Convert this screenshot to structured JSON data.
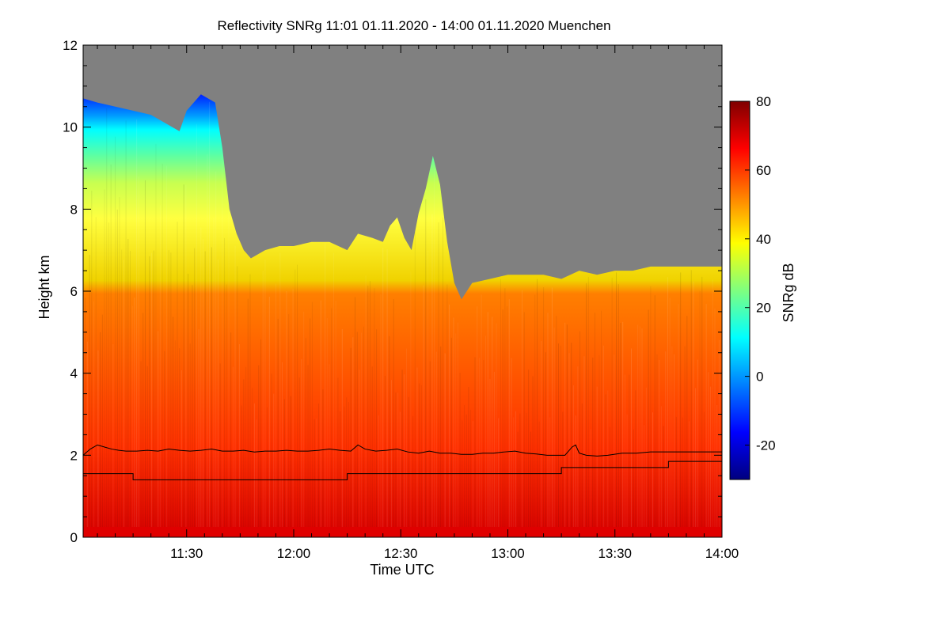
{
  "chart_data": {
    "type": "heatmap",
    "title": "Reflectivity SNRg   11:01 01.11.2020 - 14:00 01.11.2020 Muenchen",
    "xlabel": "Time UTC",
    "ylabel": "Height km",
    "colorbar_label": "SNRg dB",
    "xlim_minutes": [
      661,
      840
    ],
    "ylim_km": [
      0,
      12
    ],
    "x_ticks": [
      {
        "minute": 690,
        "label": "11:30"
      },
      {
        "minute": 720,
        "label": "12:00"
      },
      {
        "minute": 750,
        "label": "12:30"
      },
      {
        "minute": 780,
        "label": "13:00"
      },
      {
        "minute": 810,
        "label": "13:30"
      },
      {
        "minute": 840,
        "label": "14:00"
      }
    ],
    "y_ticks": [
      {
        "value": 0,
        "label": "0"
      },
      {
        "value": 2,
        "label": "2"
      },
      {
        "value": 4,
        "label": "4"
      },
      {
        "value": 6,
        "label": "6"
      },
      {
        "value": 8,
        "label": "8"
      },
      {
        "value": 10,
        "label": "10"
      },
      {
        "value": 12,
        "label": "12"
      }
    ],
    "colorbar_range": [
      -30,
      80
    ],
    "colorbar_ticks": [
      {
        "value": -20,
        "label": "-20"
      },
      {
        "value": 0,
        "label": "0"
      },
      {
        "value": 20,
        "label": "20"
      },
      {
        "value": 40,
        "label": "40"
      },
      {
        "value": 60,
        "label": "60"
      },
      {
        "value": 80,
        "label": "80"
      }
    ],
    "colormap": [
      "#00007f",
      "#0000ff",
      "#007fff",
      "#00ffff",
      "#7fff7f",
      "#ffff00",
      "#ff7f00",
      "#ff0000",
      "#7f0000"
    ],
    "no_signal_color": "#808080",
    "signal_top_km": [
      [
        661,
        10.7
      ],
      [
        665,
        10.6
      ],
      [
        670,
        10.5
      ],
      [
        675,
        10.4
      ],
      [
        680,
        10.3
      ],
      [
        684,
        10.1
      ],
      [
        688,
        9.9
      ],
      [
        690,
        10.4
      ],
      [
        694,
        10.8
      ],
      [
        698,
        10.6
      ],
      [
        700,
        9.5
      ],
      [
        702,
        8.0
      ],
      [
        704,
        7.4
      ],
      [
        706,
        7.0
      ],
      [
        708,
        6.8
      ],
      [
        712,
        7.0
      ],
      [
        716,
        7.1
      ],
      [
        720,
        7.1
      ],
      [
        725,
        7.2
      ],
      [
        730,
        7.2
      ],
      [
        735,
        7.0
      ],
      [
        738,
        7.4
      ],
      [
        742,
        7.3
      ],
      [
        745,
        7.2
      ],
      [
        747,
        7.6
      ],
      [
        749,
        7.8
      ],
      [
        751,
        7.3
      ],
      [
        753,
        7.0
      ],
      [
        755,
        7.9
      ],
      [
        757,
        8.5
      ],
      [
        759,
        9.3
      ],
      [
        761,
        8.6
      ],
      [
        763,
        7.2
      ],
      [
        765,
        6.2
      ],
      [
        767,
        5.8
      ],
      [
        770,
        6.2
      ],
      [
        775,
        6.3
      ],
      [
        780,
        6.4
      ],
      [
        785,
        6.4
      ],
      [
        790,
        6.4
      ],
      [
        795,
        6.3
      ],
      [
        800,
        6.5
      ],
      [
        805,
        6.4
      ],
      [
        810,
        6.5
      ],
      [
        815,
        6.5
      ],
      [
        820,
        6.6
      ],
      [
        825,
        6.6
      ],
      [
        830,
        6.6
      ],
      [
        835,
        6.6
      ],
      [
        840,
        6.6
      ]
    ],
    "series": [
      {
        "name": "",
        "x": [
          661,
          663,
          665,
          667,
          669,
          671,
          673,
          676,
          679,
          682,
          685,
          688,
          691,
          694,
          697,
          700,
          703,
          706,
          709,
          712,
          715,
          718,
          721,
          724,
          727,
          730,
          733,
          736,
          738,
          740,
          743,
          746,
          749,
          752,
          755,
          758,
          761,
          764,
          767,
          770,
          773,
          776,
          779,
          782,
          785,
          788,
          791,
          794,
          796,
          798,
          799,
          800,
          802,
          805,
          808,
          812,
          816,
          820,
          825,
          830,
          835,
          840
        ],
        "y": [
          2.0,
          2.15,
          2.25,
          2.2,
          2.15,
          2.12,
          2.1,
          2.1,
          2.12,
          2.1,
          2.15,
          2.12,
          2.1,
          2.12,
          2.15,
          2.1,
          2.1,
          2.12,
          2.08,
          2.1,
          2.1,
          2.12,
          2.1,
          2.1,
          2.12,
          2.15,
          2.12,
          2.1,
          2.25,
          2.15,
          2.1,
          2.12,
          2.15,
          2.08,
          2.05,
          2.1,
          2.05,
          2.05,
          2.02,
          2.02,
          2.05,
          2.05,
          2.08,
          2.1,
          2.05,
          2.03,
          2.0,
          2.0,
          2.0,
          2.2,
          2.25,
          2.05,
          2.0,
          1.98,
          2.0,
          2.05,
          2.05,
          2.08,
          2.08,
          2.08,
          2.08,
          2.08
        ]
      },
      {
        "name": "",
        "x": [
          661,
          675,
          675,
          735,
          735,
          795,
          795,
          825,
          825,
          840
        ],
        "y": [
          1.55,
          1.55,
          1.4,
          1.4,
          1.55,
          1.55,
          1.7,
          1.7,
          1.85,
          1.85
        ]
      }
    ]
  }
}
